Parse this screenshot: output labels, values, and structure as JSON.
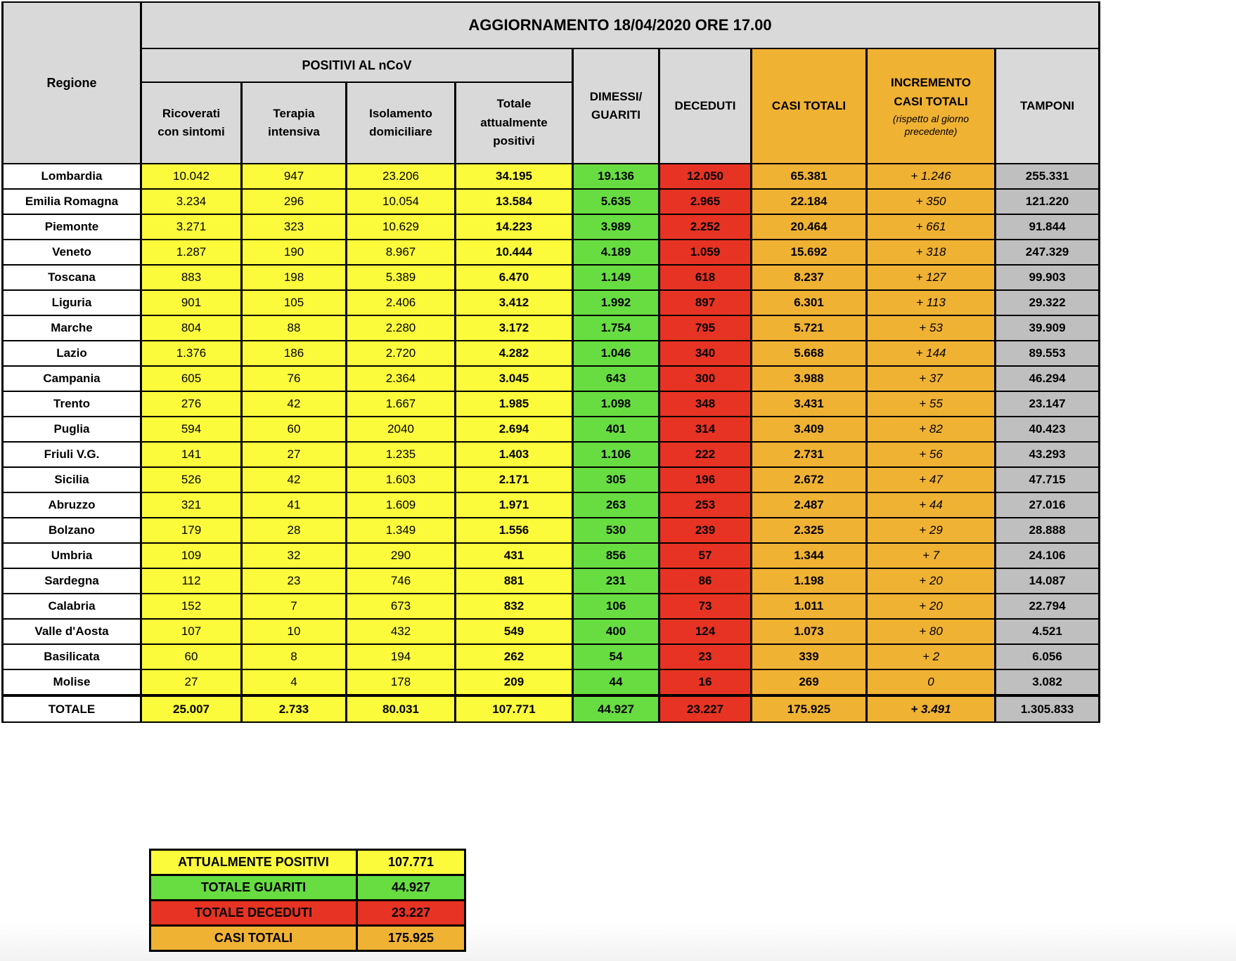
{
  "colors": {
    "yellow": "#fbfb3c",
    "green": "#67dd41",
    "red": "#e73323",
    "orange": "#f0b233",
    "cellgray": "#bfbfbf",
    "headergray": "#d9d9d9"
  },
  "chart_data": {
    "type": "table",
    "title": "AGGIORNAMENTO 18/04/2020 ORE 17.00",
    "headers": {
      "regione": "Regione",
      "positivi_group": "POSITIVI AL nCoV",
      "ricoverati": "Ricoverati\ncon sintomi",
      "terapia": "Terapia\nintensiva",
      "isolamento": "Isolamento\ndomiciliare",
      "totale_pos": "Totale\nattualmente\npositivi",
      "dimessi": "DIMESSI/\nGUARITI",
      "deceduti": "DECEDUTI",
      "casi": "CASI TOTALI",
      "incremento": "INCREMENTO\nCASI  TOTALI",
      "incremento_note": "(rispetto al giorno precedente)",
      "tamponi": "TAMPONI"
    },
    "rows": [
      {
        "region": "Lombardia",
        "ricoverati": "10.042",
        "terapia": "947",
        "isolamento": "23.206",
        "totale": "34.195",
        "dimessi": "19.136",
        "deceduti": "12.050",
        "casi": "65.381",
        "incremento": "+ 1.246",
        "tamponi": "255.331"
      },
      {
        "region": "Emilia Romagna",
        "ricoverati": "3.234",
        "terapia": "296",
        "isolamento": "10.054",
        "totale": "13.584",
        "dimessi": "5.635",
        "deceduti": "2.965",
        "casi": "22.184",
        "incremento": "+ 350",
        "tamponi": "121.220"
      },
      {
        "region": "Piemonte",
        "ricoverati": "3.271",
        "terapia": "323",
        "isolamento": "10.629",
        "totale": "14.223",
        "dimessi": "3.989",
        "deceduti": "2.252",
        "casi": "20.464",
        "incremento": "+ 661",
        "tamponi": "91.844"
      },
      {
        "region": "Veneto",
        "ricoverati": "1.287",
        "terapia": "190",
        "isolamento": "8.967",
        "totale": "10.444",
        "dimessi": "4.189",
        "deceduti": "1.059",
        "casi": "15.692",
        "incremento": "+ 318",
        "tamponi": "247.329"
      },
      {
        "region": "Toscana",
        "ricoverati": "883",
        "terapia": "198",
        "isolamento": "5.389",
        "totale": "6.470",
        "dimessi": "1.149",
        "deceduti": "618",
        "casi": "8.237",
        "incremento": "+ 127",
        "tamponi": "99.903"
      },
      {
        "region": "Liguria",
        "ricoverati": "901",
        "terapia": "105",
        "isolamento": "2.406",
        "totale": "3.412",
        "dimessi": "1.992",
        "deceduti": "897",
        "casi": "6.301",
        "incremento": "+ 113",
        "tamponi": "29.322"
      },
      {
        "region": "Marche",
        "ricoverati": "804",
        "terapia": "88",
        "isolamento": "2.280",
        "totale": "3.172",
        "dimessi": "1.754",
        "deceduti": "795",
        "casi": "5.721",
        "incremento": "+ 53",
        "tamponi": "39.909"
      },
      {
        "region": "Lazio",
        "ricoverati": "1.376",
        "terapia": "186",
        "isolamento": "2.720",
        "totale": "4.282",
        "dimessi": "1.046",
        "deceduti": "340",
        "casi": "5.668",
        "incremento": "+ 144",
        "tamponi": "89.553"
      },
      {
        "region": "Campania",
        "ricoverati": "605",
        "terapia": "76",
        "isolamento": "2.364",
        "totale": "3.045",
        "dimessi": "643",
        "deceduti": "300",
        "casi": "3.988",
        "incremento": "+ 37",
        "tamponi": "46.294"
      },
      {
        "region": "Trento",
        "ricoverati": "276",
        "terapia": "42",
        "isolamento": "1.667",
        "totale": "1.985",
        "dimessi": "1.098",
        "deceduti": "348",
        "casi": "3.431",
        "incremento": "+ 55",
        "tamponi": "23.147"
      },
      {
        "region": "Puglia",
        "ricoverati": "594",
        "terapia": "60",
        "isolamento": "2040",
        "totale": "2.694",
        "dimessi": "401",
        "deceduti": "314",
        "casi": "3.409",
        "incremento": "+ 82",
        "tamponi": "40.423"
      },
      {
        "region": "Friuli V.G.",
        "ricoverati": "141",
        "terapia": "27",
        "isolamento": "1.235",
        "totale": "1.403",
        "dimessi": "1.106",
        "deceduti": "222",
        "casi": "2.731",
        "incremento": "+ 56",
        "tamponi": "43.293"
      },
      {
        "region": "Sicilia",
        "ricoverati": "526",
        "terapia": "42",
        "isolamento": "1.603",
        "totale": "2.171",
        "dimessi": "305",
        "deceduti": "196",
        "casi": "2.672",
        "incremento": "+ 47",
        "tamponi": "47.715"
      },
      {
        "region": "Abruzzo",
        "ricoverati": "321",
        "terapia": "41",
        "isolamento": "1.609",
        "totale": "1.971",
        "dimessi": "263",
        "deceduti": "253",
        "casi": "2.487",
        "incremento": "+ 44",
        "tamponi": "27.016"
      },
      {
        "region": "Bolzano",
        "ricoverati": "179",
        "terapia": "28",
        "isolamento": "1.349",
        "totale": "1.556",
        "dimessi": "530",
        "deceduti": "239",
        "casi": "2.325",
        "incremento": "+ 29",
        "tamponi": "28.888"
      },
      {
        "region": "Umbria",
        "ricoverati": "109",
        "terapia": "32",
        "isolamento": "290",
        "totale": "431",
        "dimessi": "856",
        "deceduti": "57",
        "casi": "1.344",
        "incremento": "+ 7",
        "tamponi": "24.106"
      },
      {
        "region": "Sardegna",
        "ricoverati": "112",
        "terapia": "23",
        "isolamento": "746",
        "totale": "881",
        "dimessi": "231",
        "deceduti": "86",
        "casi": "1.198",
        "incremento": "+ 20",
        "tamponi": "14.087"
      },
      {
        "region": "Calabria",
        "ricoverati": "152",
        "terapia": "7",
        "isolamento": "673",
        "totale": "832",
        "dimessi": "106",
        "deceduti": "73",
        "casi": "1.011",
        "incremento": "+ 20",
        "tamponi": "22.794"
      },
      {
        "region": "Valle d'Aosta",
        "ricoverati": "107",
        "terapia": "10",
        "isolamento": "432",
        "totale": "549",
        "dimessi": "400",
        "deceduti": "124",
        "casi": "1.073",
        "incremento": "+ 80",
        "tamponi": "4.521"
      },
      {
        "region": "Basilicata",
        "ricoverati": "60",
        "terapia": "8",
        "isolamento": "194",
        "totale": "262",
        "dimessi": "54",
        "deceduti": "23",
        "casi": "339",
        "incremento": "+ 2",
        "tamponi": "6.056"
      },
      {
        "region": "Molise",
        "ricoverati": "27",
        "terapia": "4",
        "isolamento": "178",
        "totale": "209",
        "dimessi": "44",
        "deceduti": "16",
        "casi": "269",
        "incremento": "0",
        "tamponi": "3.082"
      }
    ],
    "totale": {
      "region": "TOTALE",
      "ricoverati": "25.007",
      "terapia": "2.733",
      "isolamento": "80.031",
      "totale": "107.771",
      "dimessi": "44.927",
      "deceduti": "23.227",
      "casi": "175.925",
      "incremento": "+ 3.491",
      "tamponi": "1.305.833"
    },
    "summary": {
      "rows": [
        {
          "label": "ATTUALMENTE POSITIVI",
          "value": "107.771",
          "color": "#fbfb3c"
        },
        {
          "label": "TOTALE GUARITI",
          "value": "44.927",
          "color": "#67dd41"
        },
        {
          "label": "TOTALE DECEDUTI",
          "value": "23.227",
          "color": "#e73323"
        },
        {
          "label": "CASI TOTALI",
          "value": "175.925",
          "color": "#f0b233"
        }
      ]
    }
  }
}
